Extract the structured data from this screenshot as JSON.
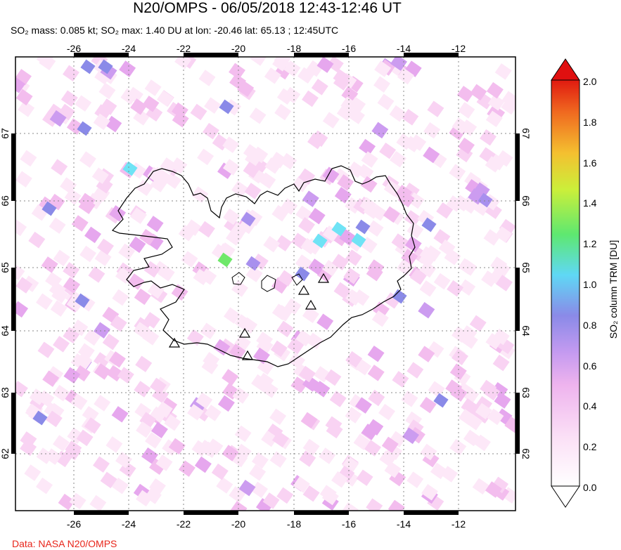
{
  "title": "N20/OMPS - 06/05/2018 12:43-12:46 UT",
  "subtitle": {
    "so2_mass": "SO₂ mass: 0.085 kt",
    "so2_max": "SO₂ max: 1.40 DU at lon: -20.46 lat: 65.13",
    "time": "12:45UTC"
  },
  "map": {
    "lon_ticks": [
      "-26",
      "-24",
      "-22",
      "-20",
      "-18",
      "-16",
      "-14",
      "-12"
    ],
    "lat_ticks": [
      "67",
      "66",
      "65",
      "64",
      "63",
      "62"
    ],
    "region": "Iceland",
    "volcano_marker": "triangle-icon"
  },
  "colorbar": {
    "label": "SO₂ column TRM [DU]",
    "ticks": [
      "2.0",
      "1.8",
      "1.6",
      "1.4",
      "1.2",
      "1.0",
      "0.8",
      "0.6",
      "0.4",
      "0.2",
      "0.0"
    ],
    "colors": [
      "#ffffff",
      "#f6c8ef",
      "#d89cf0",
      "#8b87e8",
      "#5fd0f0",
      "#6fe86a",
      "#e8f03a",
      "#f5a623",
      "#ef3b1f",
      "#e01010"
    ]
  },
  "credit": "Data: NASA N20/OMPS"
}
